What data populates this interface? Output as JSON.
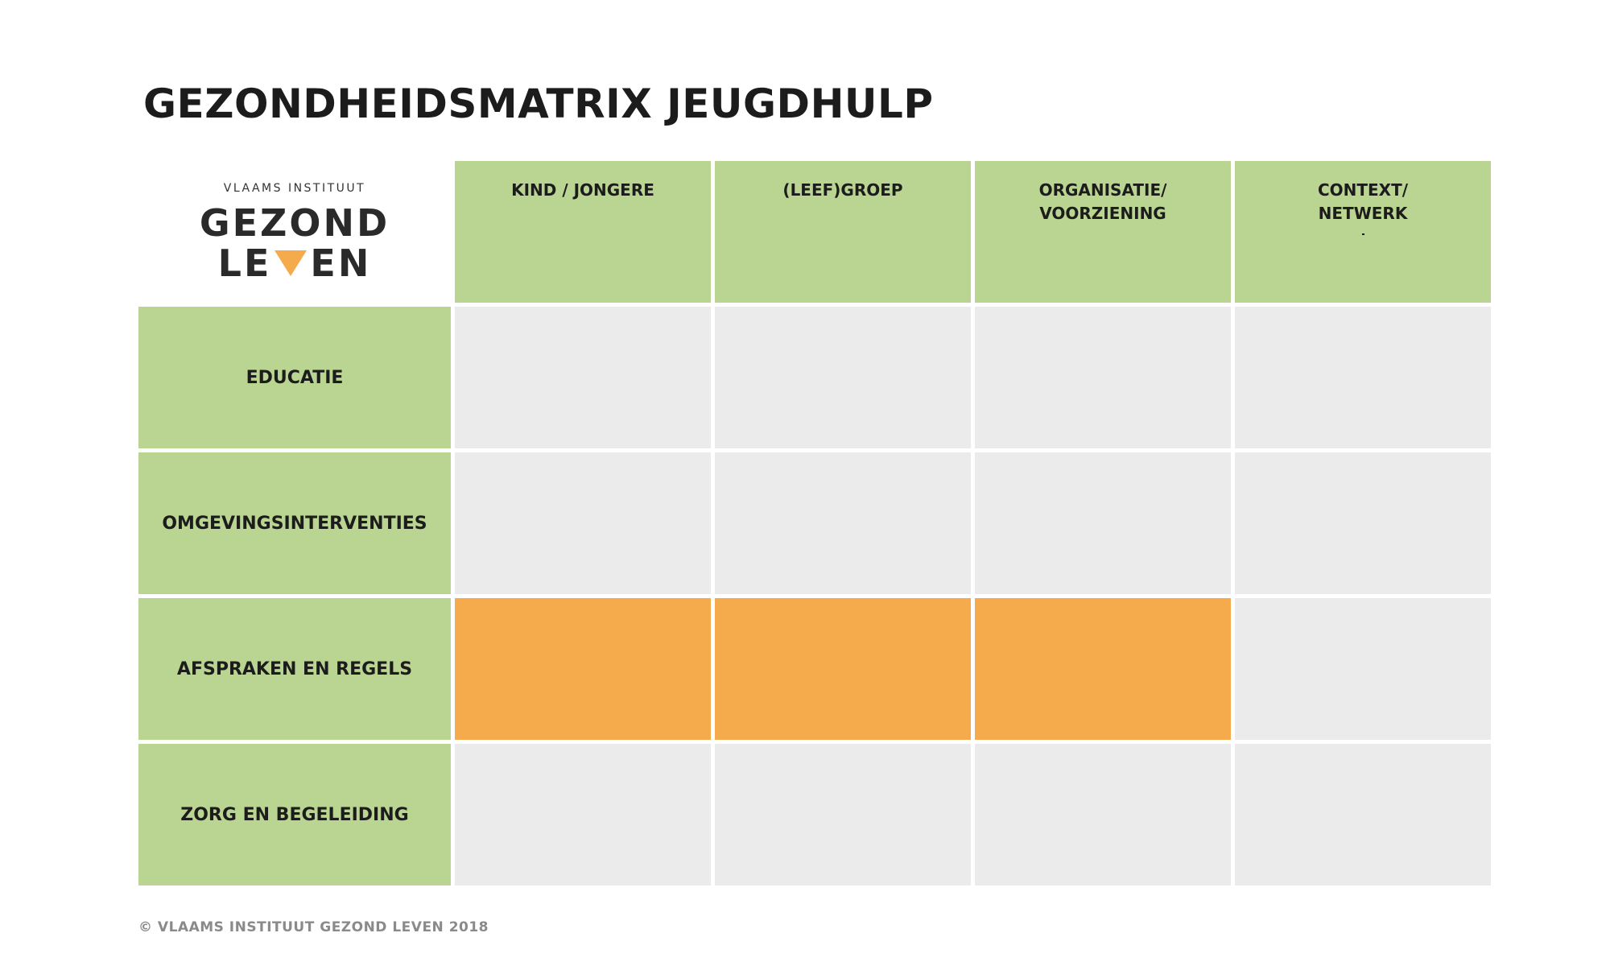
{
  "title": "GEZONDHEIDSMATRIX JEUGDHULP",
  "logo": {
    "top_text": "VLAAMS INSTITUUT",
    "line1": "GEZOND",
    "line2_left": "LE",
    "line2_right": "EN",
    "triangle_color": "#f5aa4b"
  },
  "columns": [
    {
      "label": "KIND / JONGERE",
      "mark": false
    },
    {
      "label": "(LEEF)GROEP",
      "mark": false
    },
    {
      "label": "ORGANISATIE/\nVOORZIENING",
      "mark": false
    },
    {
      "label": "CONTEXT/\nNETWERK",
      "mark": true
    }
  ],
  "rows": [
    {
      "label": "EDUCATIE",
      "highlighted": [
        false,
        false,
        false,
        false
      ]
    },
    {
      "label": "OMGEVINGSINTERVENTIES",
      "highlighted": [
        false,
        false,
        false,
        false
      ]
    },
    {
      "label": "AFSPRAKEN EN REGELS",
      "highlighted": [
        true,
        true,
        true,
        false
      ]
    },
    {
      "label": "ZORG EN BEGELEIDING",
      "highlighted": [
        false,
        false,
        false,
        false
      ]
    }
  ],
  "colors": {
    "header_green": "#bad591",
    "cell_grey": "#ebebeb",
    "highlight_orange": "#f5aa4b"
  },
  "footer": "© VLAAMS INSTITUUT GEZOND LEVEN 2018"
}
